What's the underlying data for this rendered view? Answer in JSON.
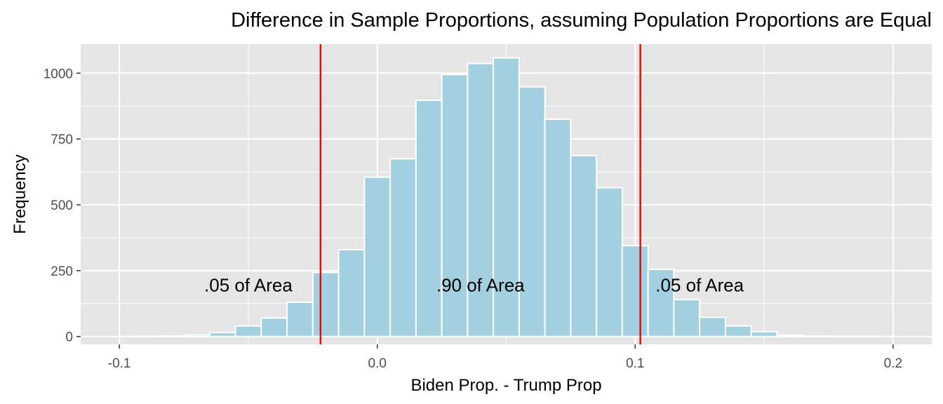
{
  "chart_data": {
    "type": "bar",
    "title": "Difference in Sample Proportions, assuming Population Proportions are Equal",
    "xlabel": "Biden Prop. - Trump Prop",
    "ylabel": "Frequency",
    "xlim": [
      -0.115,
      0.215
    ],
    "ylim": [
      -30,
      1110
    ],
    "x_ticks": [
      -0.1,
      0.0,
      0.1,
      0.2
    ],
    "x_tick_labels": [
      "-0.1",
      "0.0",
      "0.1",
      "0.2"
    ],
    "y_ticks": [
      0,
      250,
      500,
      750,
      1000
    ],
    "y_tick_labels": [
      "0",
      "250",
      "500",
      "750",
      "1000"
    ],
    "grid": true,
    "bin_width": 0.01,
    "bin_centers": [
      -0.09,
      -0.08,
      -0.07,
      -0.06,
      -0.05,
      -0.04,
      -0.03,
      -0.02,
      -0.01,
      0.0,
      0.01,
      0.02,
      0.03,
      0.04,
      0.05,
      0.06,
      0.07,
      0.08,
      0.09,
      0.1,
      0.11,
      0.12,
      0.13,
      0.14,
      0.15,
      0.16,
      0.17,
      0.18,
      0.19,
      0.2
    ],
    "values": [
      1,
      2,
      6,
      15,
      40,
      70,
      130,
      243,
      330,
      605,
      675,
      897,
      995,
      1037,
      1058,
      948,
      825,
      687,
      565,
      345,
      255,
      140,
      73,
      40,
      18,
      5,
      2,
      1,
      1,
      0
    ],
    "reference_lines": [
      {
        "x": -0.022,
        "color": "#ff0000"
      },
      {
        "x": 0.102,
        "color": "#ff0000"
      }
    ],
    "annotations": [
      {
        "text": ".05 of Area",
        "x": -0.05,
        "y": 195
      },
      {
        "text": ".90 of Area",
        "x": 0.04,
        "y": 195
      },
      {
        "text": ".05 of Area",
        "x": 0.125,
        "y": 195
      }
    ],
    "colors": {
      "bar_fill": "#a2d0e0",
      "bar_outline": "#ffffff",
      "panel_background": "#e5e5e5",
      "grid": "#ffffff",
      "reference_line": "#ff0000"
    }
  }
}
